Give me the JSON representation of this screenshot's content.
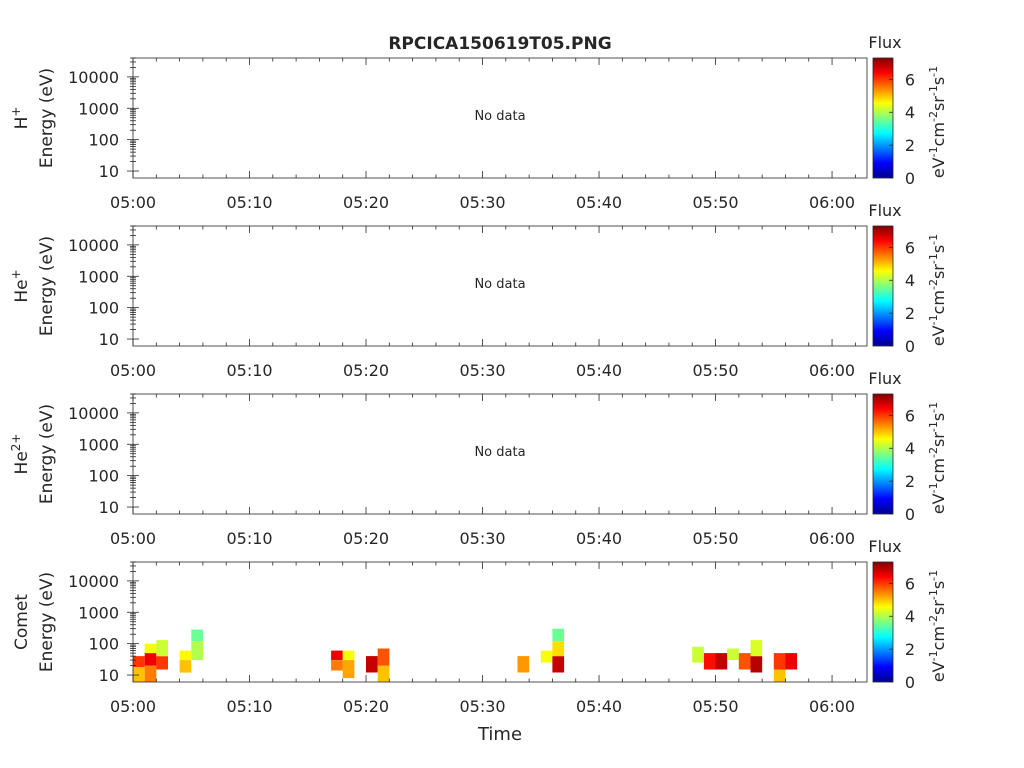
{
  "title": "RPCICA150619T05.PNG",
  "x_tick_labels": [
    "05:00",
    "05:10",
    "05:20",
    "05:30",
    "05:40",
    "05:50",
    "06:00"
  ],
  "y_tick_labels": [
    "10",
    "100",
    "1000",
    "10000"
  ],
  "colorbar": {
    "title": "Flux",
    "tick_labels": [
      "0",
      "2",
      "4",
      "6"
    ],
    "range": [
      0,
      7.3
    ]
  },
  "xlabel": "Time",
  "chart_data": [
    {
      "type": "heatmap",
      "species": "H",
      "charge": "+",
      "ylabel": "Energy (eV)",
      "yscale": "log",
      "ylim": [
        6,
        40000
      ],
      "x_range": [
        "05:00",
        "06:03"
      ],
      "message": "No data",
      "cells": []
    },
    {
      "type": "heatmap",
      "species": "He",
      "charge": "+",
      "ylabel": "Energy (eV)",
      "yscale": "log",
      "ylim": [
        6,
        40000
      ],
      "x_range": [
        "05:00",
        "06:03"
      ],
      "message": "No data",
      "cells": []
    },
    {
      "type": "heatmap",
      "species": "He",
      "charge": "2+",
      "ylabel": "Energy (eV)",
      "yscale": "log",
      "ylim": [
        6,
        40000
      ],
      "x_range": [
        "05:00",
        "06:03"
      ],
      "message": "No data",
      "cells": []
    },
    {
      "type": "heatmap",
      "species": "Comet",
      "charge": "",
      "ylabel": "Energy (eV)",
      "yscale": "log",
      "ylim": [
        6,
        40000
      ],
      "x_range": [
        "05:00",
        "06:03"
      ],
      "message": "",
      "cells": [
        {
          "t": "05:00",
          "e_low": 6,
          "e_high": 18,
          "flux": 5.0
        },
        {
          "t": "05:00",
          "e_low": 18,
          "e_high": 40,
          "flux": 6.0
        },
        {
          "t": "05:01",
          "e_low": 6,
          "e_high": 20,
          "flux": 5.5
        },
        {
          "t": "05:01",
          "e_low": 20,
          "e_high": 50,
          "flux": 6.5
        },
        {
          "t": "05:01",
          "e_low": 50,
          "e_high": 100,
          "flux": 4.5
        },
        {
          "t": "05:02",
          "e_low": 15,
          "e_high": 40,
          "flux": 6.0
        },
        {
          "t": "05:02",
          "e_low": 40,
          "e_high": 130,
          "flux": 4.2
        },
        {
          "t": "05:04",
          "e_low": 12,
          "e_high": 30,
          "flux": 5.0
        },
        {
          "t": "05:04",
          "e_low": 30,
          "e_high": 60,
          "flux": 4.6
        },
        {
          "t": "05:05",
          "e_low": 30,
          "e_high": 120,
          "flux": 4.0
        },
        {
          "t": "05:05",
          "e_low": 120,
          "e_high": 280,
          "flux": 3.5
        },
        {
          "t": "05:17",
          "e_low": 14,
          "e_high": 30,
          "flux": 5.5
        },
        {
          "t": "05:17",
          "e_low": 30,
          "e_high": 60,
          "flux": 6.5
        },
        {
          "t": "05:18",
          "e_low": 8,
          "e_high": 30,
          "flux": 5.2
        },
        {
          "t": "05:18",
          "e_low": 30,
          "e_high": 60,
          "flux": 4.5
        },
        {
          "t": "05:20",
          "e_low": 12,
          "e_high": 40,
          "flux": 6.8
        },
        {
          "t": "05:21",
          "e_low": 6,
          "e_high": 20,
          "flux": 5.0
        },
        {
          "t": "05:21",
          "e_low": 20,
          "e_high": 70,
          "flux": 5.8
        },
        {
          "t": "05:33",
          "e_low": 12,
          "e_high": 40,
          "flux": 5.3
        },
        {
          "t": "05:35",
          "e_low": 25,
          "e_high": 60,
          "flux": 4.5
        },
        {
          "t": "05:36",
          "e_low": 12,
          "e_high": 40,
          "flux": 6.8
        },
        {
          "t": "05:36",
          "e_low": 40,
          "e_high": 120,
          "flux": 4.8
        },
        {
          "t": "05:36",
          "e_low": 120,
          "e_high": 300,
          "flux": 3.5
        },
        {
          "t": "05:48",
          "e_low": 25,
          "e_high": 80,
          "flux": 4.2
        },
        {
          "t": "05:49",
          "e_low": 15,
          "e_high": 50,
          "flux": 6.3
        },
        {
          "t": "05:50",
          "e_low": 15,
          "e_high": 50,
          "flux": 6.8
        },
        {
          "t": "05:51",
          "e_low": 30,
          "e_high": 70,
          "flux": 4.2
        },
        {
          "t": "05:52",
          "e_low": 15,
          "e_high": 50,
          "flux": 5.8
        },
        {
          "t": "05:53",
          "e_low": 12,
          "e_high": 40,
          "flux": 6.9
        },
        {
          "t": "05:53",
          "e_low": 40,
          "e_high": 130,
          "flux": 4.3
        },
        {
          "t": "05:55",
          "e_low": 15,
          "e_high": 50,
          "flux": 6.0
        },
        {
          "t": "05:55",
          "e_low": 6,
          "e_high": 15,
          "flux": 5.0
        },
        {
          "t": "05:56",
          "e_low": 15,
          "e_high": 50,
          "flux": 6.5
        }
      ]
    }
  ]
}
